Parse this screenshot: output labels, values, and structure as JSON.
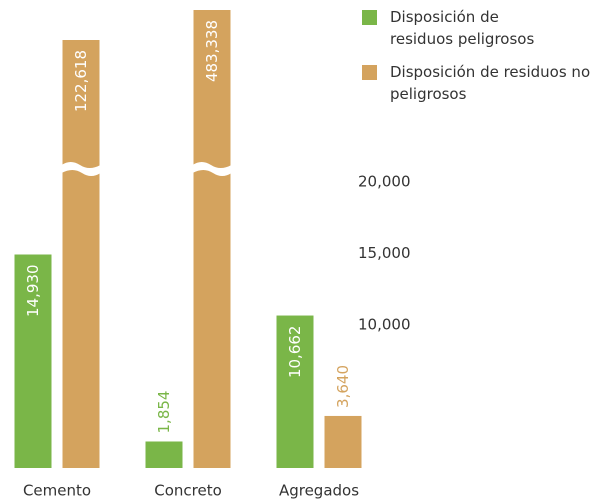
{
  "chart_data": {
    "type": "bar",
    "categories": [
      "Cemento",
      "Concreto",
      "Agregados"
    ],
    "series": [
      {
        "name": "Disposición de residuos peligrosos",
        "color": "#7ab648",
        "values": [
          14930,
          1854,
          10662
        ],
        "value_labels": [
          "14,930",
          "1,854",
          "10,662"
        ]
      },
      {
        "name": "Disposición de residuos no peligrosos",
        "color": "#d4a35e",
        "values": [
          122618,
          483338,
          3640
        ],
        "value_labels": [
          "122,618",
          "483,338",
          "3,640"
        ]
      }
    ],
    "ylim": [
      0,
      22500
    ],
    "yticks": [
      {
        "value": 10000,
        "label": "10,000"
      },
      {
        "value": 15000,
        "label": "15,000"
      },
      {
        "value": 20000,
        "label": "20,000"
      }
    ],
    "axis_break": true,
    "legend": "top-right"
  }
}
